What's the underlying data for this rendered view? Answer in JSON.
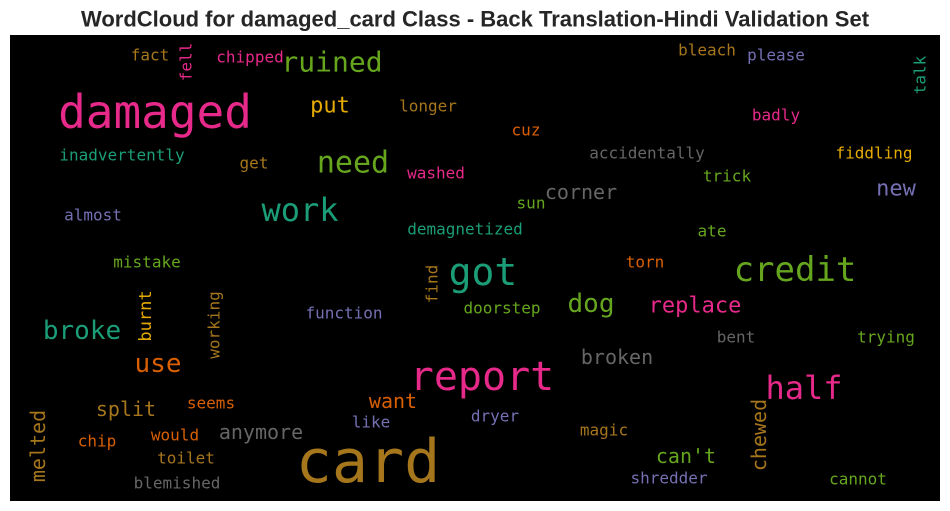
{
  "chart_data": {
    "type": "wordcloud",
    "title": "WordCloud for damaged_card Class - Back Translation-Hindi Validation Set",
    "background": "#000000",
    "words": [
      {
        "text": "damaged",
        "color": "#e7298a"
      },
      {
        "text": "card",
        "color": "#a6761d"
      },
      {
        "text": "report",
        "color": "#e7298a"
      },
      {
        "text": "got",
        "color": "#1b9e77"
      },
      {
        "text": "credit",
        "color": "#66a61e"
      },
      {
        "text": "work",
        "color": "#1b9e77"
      },
      {
        "text": "need",
        "color": "#66a61e"
      },
      {
        "text": "half",
        "color": "#e7298a"
      },
      {
        "text": "ruined",
        "color": "#66a61e"
      },
      {
        "text": "dog",
        "color": "#66a61e"
      },
      {
        "text": "broke",
        "color": "#1b9e77"
      },
      {
        "text": "replace",
        "color": "#e7298a"
      },
      {
        "text": "use",
        "color": "#d95f02"
      },
      {
        "text": "put",
        "color": "#e6ab02"
      },
      {
        "text": "corner",
        "color": "#666666"
      },
      {
        "text": "new",
        "color": "#7570b3"
      },
      {
        "text": "broken",
        "color": "#666666"
      },
      {
        "text": "anymore",
        "color": "#666666"
      },
      {
        "text": "want",
        "color": "#d95f02"
      },
      {
        "text": "split",
        "color": "#a6761d"
      },
      {
        "text": "can't",
        "color": "#66a61e"
      },
      {
        "text": "chewed",
        "color": "#a6761d"
      },
      {
        "text": "melted",
        "color": "#a6761d"
      },
      {
        "text": "burnt",
        "color": "#e6ab02"
      },
      {
        "text": "working",
        "color": "#a6761d"
      },
      {
        "text": "find",
        "color": "#a6761d"
      },
      {
        "text": "fell",
        "color": "#e7298a"
      },
      {
        "text": "talk",
        "color": "#1b9e77"
      },
      {
        "text": "fact",
        "color": "#a6761d"
      },
      {
        "text": "chipped",
        "color": "#e7298a"
      },
      {
        "text": "bleach",
        "color": "#a6761d"
      },
      {
        "text": "please",
        "color": "#7570b3"
      },
      {
        "text": "longer",
        "color": "#a6761d"
      },
      {
        "text": "badly",
        "color": "#e7298a"
      },
      {
        "text": "cuz",
        "color": "#d95f02"
      },
      {
        "text": "inadvertently",
        "color": "#1b9e77"
      },
      {
        "text": "get",
        "color": "#a6761d"
      },
      {
        "text": "washed",
        "color": "#e7298a"
      },
      {
        "text": "accidentally",
        "color": "#666666"
      },
      {
        "text": "fiddling",
        "color": "#e6ab02"
      },
      {
        "text": "trick",
        "color": "#66a61e"
      },
      {
        "text": "almost",
        "color": "#7570b3"
      },
      {
        "text": "sun",
        "color": "#66a61e"
      },
      {
        "text": "demagnetized",
        "color": "#1b9e77"
      },
      {
        "text": "ate",
        "color": "#66a61e"
      },
      {
        "text": "mistake",
        "color": "#66a61e"
      },
      {
        "text": "torn",
        "color": "#d95f02"
      },
      {
        "text": "function",
        "color": "#7570b3"
      },
      {
        "text": "doorstep",
        "color": "#66a61e"
      },
      {
        "text": "bent",
        "color": "#666666"
      },
      {
        "text": "trying",
        "color": "#66a61e"
      },
      {
        "text": "seems",
        "color": "#d95f02"
      },
      {
        "text": "like",
        "color": "#7570b3"
      },
      {
        "text": "dryer",
        "color": "#7570b3"
      },
      {
        "text": "chip",
        "color": "#d95f02"
      },
      {
        "text": "would",
        "color": "#d95f02"
      },
      {
        "text": "magic",
        "color": "#a6761d"
      },
      {
        "text": "toilet",
        "color": "#a6761d"
      },
      {
        "text": "blemished",
        "color": "#666666"
      },
      {
        "text": "shredder",
        "color": "#7570b3"
      },
      {
        "text": "cannot",
        "color": "#66a61e"
      }
    ]
  }
}
